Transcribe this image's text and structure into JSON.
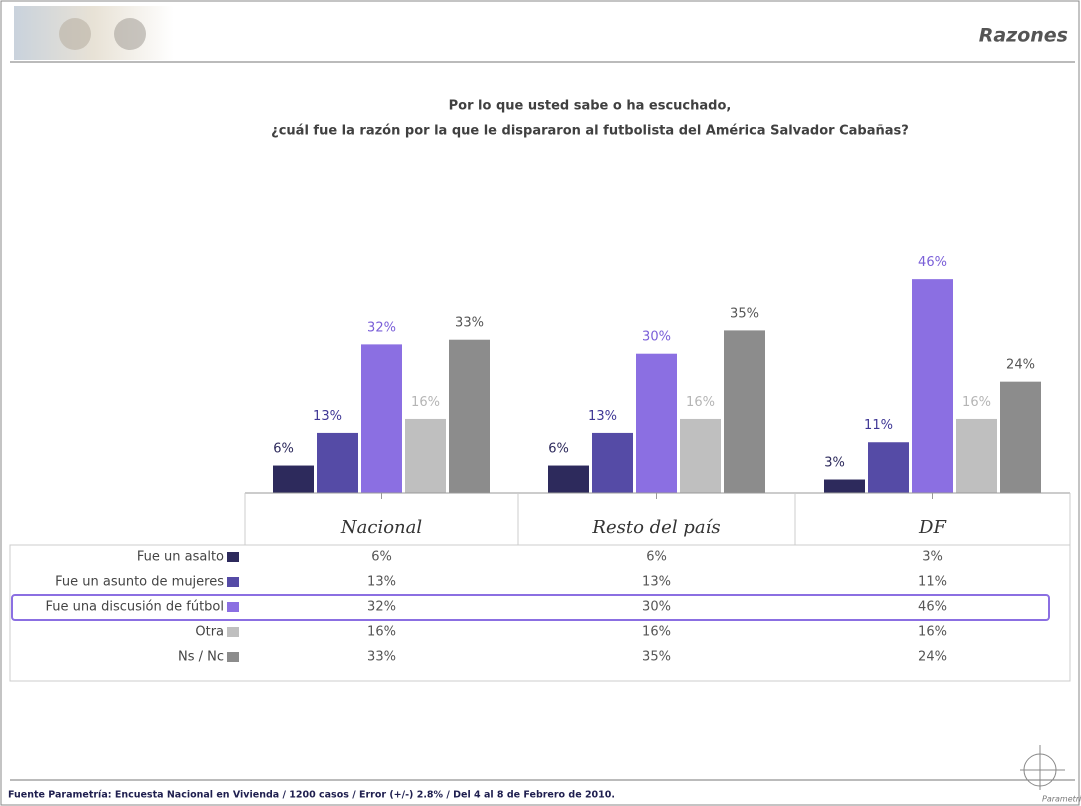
{
  "header": {
    "section": "Razones"
  },
  "chart_data": {
    "type": "bar",
    "title": "Por lo que usted sabe  o ha escuchado,",
    "subtitle": "¿cuál fue la razón por la que le dispararon al futbolista del América Salvador Cabañas?",
    "categories": [
      "Nacional",
      "Resto del país",
      "DF"
    ],
    "ylim": [
      0,
      50
    ],
    "highlight_series": 2,
    "series": [
      {
        "name": "Fue un asalto",
        "color": "#2d2a5c",
        "label_color": "#2d2a5c",
        "values": [
          6,
          6,
          3
        ],
        "value_labels": [
          "6%",
          "6%",
          "3%"
        ]
      },
      {
        "name": "Fue un asunto de mujeres",
        "color": "#554ba6",
        "label_color": "#3f3795",
        "values": [
          13,
          13,
          11
        ],
        "value_labels": [
          "13%",
          "13%",
          "11%"
        ]
      },
      {
        "name": "Fue una discusión de fútbol",
        "color": "#8b6fe2",
        "label_color": "#7a5fd8",
        "values": [
          32,
          30,
          46
        ],
        "value_labels": [
          "32%",
          "30%",
          "46%"
        ]
      },
      {
        "name": "Otra",
        "color": "#bfbfbf",
        "label_color": "#b5b5b5",
        "values": [
          16,
          16,
          16
        ],
        "value_labels": [
          "16%",
          "16%",
          "16%"
        ]
      },
      {
        "name": "Ns / Nc",
        "color": "#8c8c8c",
        "label_color": "#555555",
        "values": [
          33,
          35,
          24
        ],
        "value_labels": [
          "33%",
          "35%",
          "24%"
        ]
      }
    ]
  },
  "footer": {
    "source": "Fuente Parametría: Encuesta Nacional en Vivienda / 1200 casos / Error (+/-) 2.8% / Del 4 al 8 de Febrero de 2010.",
    "logo": "Parametría"
  }
}
